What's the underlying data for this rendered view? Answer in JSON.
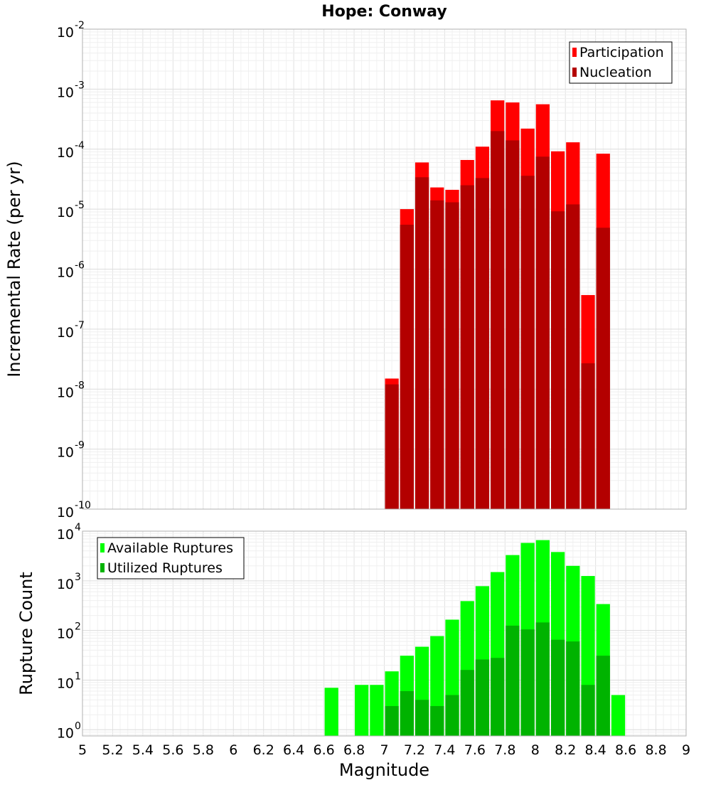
{
  "chart_data": [
    {
      "type": "bar",
      "title": "Hope: Conway",
      "xlabel": "",
      "ylabel": "Incremental Rate (per yr)",
      "yscale": "log",
      "ylim": [
        1e-10,
        0.01
      ],
      "xlim": [
        5,
        9
      ],
      "y_tick_labels": [
        {
          "base": "10",
          "exp": "-10"
        },
        {
          "base": "10",
          "exp": "-9"
        },
        {
          "base": "10",
          "exp": "-8"
        },
        {
          "base": "10",
          "exp": "-7"
        },
        {
          "base": "10",
          "exp": "-6"
        },
        {
          "base": "10",
          "exp": "-5"
        },
        {
          "base": "10",
          "exp": "-4"
        },
        {
          "base": "10",
          "exp": "-3"
        },
        {
          "base": "10",
          "exp": "-2"
        }
      ],
      "grid": true,
      "legend_position": "top-right",
      "x": [
        7.05,
        7.15,
        7.25,
        7.35,
        7.45,
        7.55,
        7.65,
        7.75,
        7.85,
        7.95,
        8.05,
        8.15,
        8.25,
        8.35,
        8.45
      ],
      "series": [
        {
          "name": "Participation",
          "color": "#ff0000",
          "values": [
            1.5e-08,
            1e-05,
            6e-05,
            2.3e-05,
            2.1e-05,
            6.6e-05,
            0.00011,
            0.00065,
            0.0006,
            0.00022,
            0.00056,
            9.2e-05,
            0.00013,
            3.7e-07,
            8.4e-05
          ]
        },
        {
          "name": "Nucleation",
          "color": "#b30000",
          "values": [
            1.2e-08,
            5.5e-06,
            3.4e-05,
            1.4e-05,
            1.3e-05,
            2.5e-05,
            3.3e-05,
            0.0002,
            0.00014,
            3.6e-05,
            7.5e-05,
            9.2e-06,
            1.2e-05,
            2.7e-08,
            4.9e-06
          ]
        }
      ]
    },
    {
      "type": "bar",
      "title": "",
      "xlabel": "Magnitude",
      "ylabel": "Rupture Count",
      "yscale": "log",
      "ylim": [
        0.75,
        10000
      ],
      "xlim": [
        5,
        9
      ],
      "x_tick_labels": [
        "5",
        "5.2",
        "5.4",
        "5.6",
        "5.8",
        "6",
        "6.2",
        "6.4",
        "6.6",
        "6.8",
        "7",
        "7.2",
        "7.4",
        "7.6",
        "7.8",
        "8",
        "8.2",
        "8.4",
        "8.6",
        "8.8",
        "9"
      ],
      "y_tick_labels": [
        {
          "base": "10",
          "exp": "0"
        },
        {
          "base": "10",
          "exp": "1"
        },
        {
          "base": "10",
          "exp": "2"
        },
        {
          "base": "10",
          "exp": "3"
        },
        {
          "base": "10",
          "exp": "4"
        }
      ],
      "grid": true,
      "legend_position": "top-left",
      "x": [
        6.65,
        6.75,
        6.85,
        6.95,
        7.05,
        7.15,
        7.25,
        7.35,
        7.45,
        7.55,
        7.65,
        7.75,
        7.85,
        7.95,
        8.05,
        8.15,
        8.25,
        8.35,
        8.45,
        8.55
      ],
      "series": [
        {
          "name": "Available Ruptures",
          "color": "#00ff00",
          "values": [
            7,
            0,
            8,
            8,
            15,
            31,
            47,
            77,
            165,
            390,
            780,
            1500,
            3300,
            5800,
            6600,
            3800,
            2000,
            1250,
            340,
            5
          ]
        },
        {
          "name": "Utilized Ruptures",
          "color": "#00b300",
          "values": [
            0,
            0,
            0,
            0,
            3,
            6,
            4,
            3,
            5,
            16,
            26,
            28,
            125,
            105,
            145,
            65,
            60,
            8,
            31,
            0
          ]
        }
      ]
    }
  ]
}
